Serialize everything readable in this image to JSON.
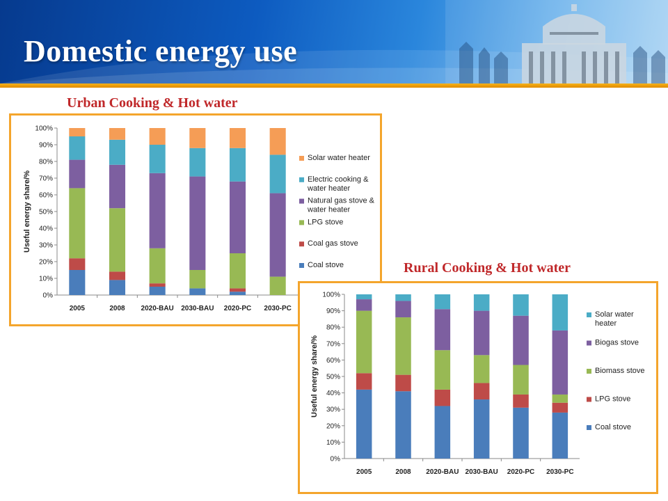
{
  "slide": {
    "title": "Domestic energy use"
  },
  "colors": {
    "coal": "#4a7dbb",
    "red": "#be4b48",
    "green": "#98b954",
    "purple": "#7d5fa0",
    "teal": "#4bacc6",
    "orange": "#f59d56",
    "accent": "#f4a52c",
    "heading": "#c0282a"
  },
  "chart_data": [
    {
      "heading": "Urban Cooking & Hot water",
      "type": "bar",
      "stacked": true,
      "ylabel": "Useful energy share/%",
      "ylim": [
        0,
        100
      ],
      "yticks": [
        "0%",
        "10%",
        "20%",
        "30%",
        "40%",
        "50%",
        "60%",
        "70%",
        "80%",
        "90%",
        "100%"
      ],
      "categories": [
        "2005",
        "2008",
        "2020-BAU",
        "2030-BAU",
        "2020-PC",
        "2030-PC"
      ],
      "legend_position": "right",
      "series": [
        {
          "name": "Coal stove",
          "color": "#4a7dbb",
          "values": [
            15,
            9,
            5,
            4,
            2,
            0
          ]
        },
        {
          "name": "Coal gas stove",
          "color": "#be4b48",
          "values": [
            7,
            5,
            2,
            0,
            2,
            0
          ]
        },
        {
          "name": "LPG stove",
          "color": "#98b954",
          "values": [
            42,
            38,
            21,
            11,
            21,
            11
          ]
        },
        {
          "name": "Natural gas stove & water heater",
          "color": "#7d5fa0",
          "values": [
            17,
            26,
            45,
            56,
            43,
            50
          ]
        },
        {
          "name": "Electric cooking & water heater",
          "color": "#4bacc6",
          "values": [
            14,
            15,
            17,
            17,
            20,
            23
          ]
        },
        {
          "name": "Solar water heater",
          "color": "#f59d56",
          "values": [
            5,
            7,
            10,
            12,
            12,
            16
          ]
        }
      ]
    },
    {
      "heading": "Rural Cooking & Hot water",
      "type": "bar",
      "stacked": true,
      "ylabel": "Useful energy share/%",
      "ylim": [
        0,
        100
      ],
      "yticks": [
        "0%",
        "10%",
        "20%",
        "30%",
        "40%",
        "50%",
        "60%",
        "70%",
        "80%",
        "90%",
        "100%"
      ],
      "categories": [
        "2005",
        "2008",
        "2020-BAU",
        "2030-BAU",
        "2020-PC",
        "2030-PC"
      ],
      "legend_position": "right",
      "series": [
        {
          "name": "Coal stove",
          "color": "#4a7dbb",
          "values": [
            42,
            41,
            32,
            36,
            31,
            28
          ]
        },
        {
          "name": "LPG stove",
          "color": "#be4b48",
          "values": [
            10,
            10,
            10,
            10,
            8,
            6
          ]
        },
        {
          "name": "Biomass stove",
          "color": "#98b954",
          "values": [
            38,
            35,
            24,
            17,
            18,
            5
          ]
        },
        {
          "name": "Biogas stove",
          "color": "#7d5fa0",
          "values": [
            7,
            10,
            25,
            27,
            30,
            39
          ]
        },
        {
          "name": "Solar water heater",
          "color": "#4bacc6",
          "values": [
            3,
            4,
            9,
            10,
            13,
            22
          ]
        }
      ]
    }
  ]
}
